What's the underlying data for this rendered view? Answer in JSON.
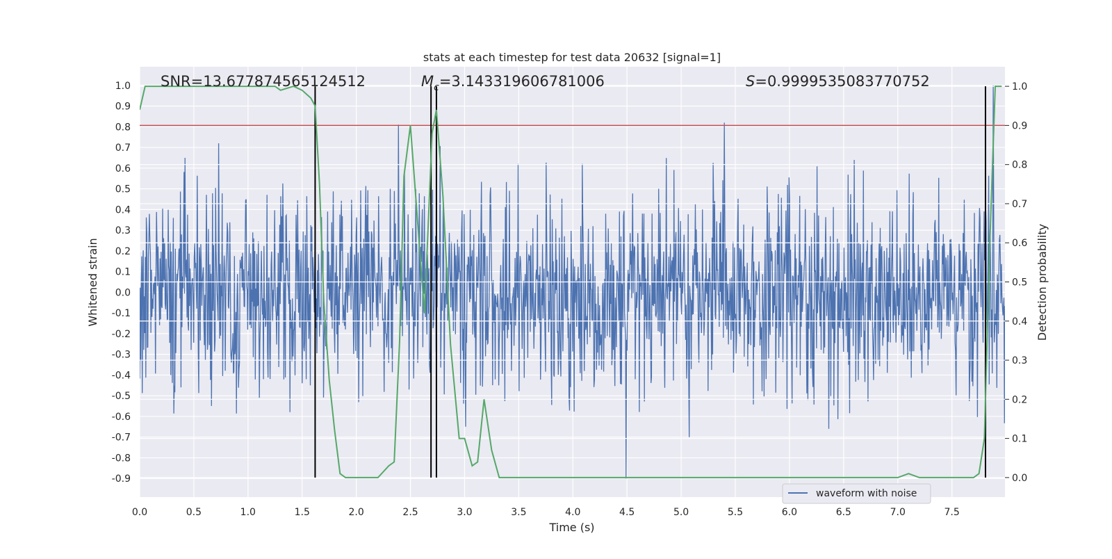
{
  "chart_data": {
    "type": "line",
    "title": "stats at each timestep for test data 20632 [signal=1]",
    "xlabel": "Time (s)",
    "ylabel": "Whitened strain",
    "ylabel_right": "Detection probability",
    "xlim": [
      0.0,
      7.99
    ],
    "ylim": [
      -0.99,
      1.09
    ],
    "ylim_right": [
      -0.05,
      1.05
    ],
    "x_ticks": [
      "0.0",
      "0.5",
      "1.0",
      "1.5",
      "2.0",
      "2.5",
      "3.0",
      "3.5",
      "4.0",
      "4.5",
      "5.0",
      "5.5",
      "6.0",
      "6.5",
      "7.0",
      "7.5"
    ],
    "y_ticks": [
      "-0.9",
      "-0.8",
      "-0.7",
      "-0.6",
      "-0.5",
      "-0.4",
      "-0.3",
      "-0.2",
      "-0.1",
      "0.0",
      "0.1",
      "0.2",
      "0.3",
      "0.4",
      "0.5",
      "0.6",
      "0.7",
      "0.8",
      "0.9",
      "1.0"
    ],
    "y_ticks_right": [
      "0.0",
      "0.1",
      "0.2",
      "0.3",
      "0.4",
      "0.5",
      "0.6",
      "0.7",
      "0.8",
      "0.9",
      "1.0"
    ],
    "grid": true,
    "legend_position": "lower-right",
    "annotations": {
      "snr": "SNR=13.677874565124512",
      "mc_symbol": "M",
      "mc_sub": "c",
      "mc_value": "=3.143319606781006",
      "s_symbol": "S",
      "s_value": "=0.9999535083770752"
    },
    "threshold": {
      "value": 0.9,
      "axis": "right",
      "color": "#c44e52"
    },
    "vertical_markers": [
      1.62,
      2.69,
      2.74,
      7.81
    ],
    "series": [
      {
        "name": "waveform with noise",
        "color": "#4c72b0",
        "axis": "left",
        "style": "noise",
        "envelope_pos": 0.42,
        "envelope_neg": -0.43,
        "notable_peaks": [
          [
            0.73,
            0.72
          ],
          [
            2.39,
            0.81
          ],
          [
            4.49,
            -0.9
          ],
          [
            5.4,
            0.82
          ],
          [
            7.88,
            1.0
          ]
        ]
      },
      {
        "color": "#55a868",
        "axis": "right",
        "x": [
          0.0,
          0.05,
          1.25,
          1.3,
          1.42,
          1.5,
          1.58,
          1.62,
          1.66,
          1.7,
          1.75,
          1.8,
          1.85,
          1.9,
          2.0,
          2.1,
          2.2,
          2.3,
          2.35,
          2.4,
          2.44,
          2.5,
          2.6,
          2.63,
          2.7,
          2.74,
          2.8,
          2.87,
          2.95,
          3.0,
          3.07,
          3.12,
          3.18,
          3.25,
          3.32,
          3.5,
          4.0,
          4.5,
          5.0,
          5.3,
          5.5,
          6.0,
          6.5,
          7.0,
          7.1,
          7.2,
          7.6,
          7.7,
          7.75,
          7.8,
          7.85,
          7.9,
          7.93,
          7.96
        ],
        "y": [
          0.94,
          1.0,
          1.0,
          0.99,
          1.0,
          0.99,
          0.97,
          0.95,
          0.75,
          0.45,
          0.25,
          0.12,
          0.01,
          0.0,
          0.0,
          0.0,
          0.0,
          0.03,
          0.04,
          0.35,
          0.77,
          0.9,
          0.53,
          0.42,
          0.88,
          0.94,
          0.72,
          0.34,
          0.1,
          0.1,
          0.03,
          0.04,
          0.2,
          0.07,
          0.0,
          0.0,
          0.0,
          0.0,
          0.0,
          0.0,
          0.0,
          0.0,
          0.0,
          0.0,
          0.01,
          0.0,
          0.0,
          0.0,
          0.01,
          0.1,
          0.6,
          1.0,
          1.0,
          1.0
        ]
      }
    ]
  }
}
